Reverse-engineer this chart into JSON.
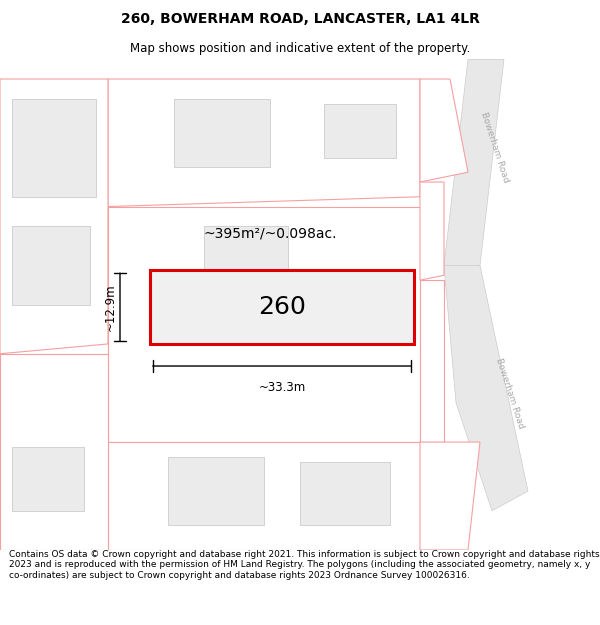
{
  "title": "260, BOWERHAM ROAD, LANCASTER, LA1 4LR",
  "subtitle": "Map shows position and indicative extent of the property.",
  "footer": "Contains OS data © Crown copyright and database right 2021. This information is subject to Crown copyright and database rights 2023 and is reproduced with the permission of HM Land Registry. The polygons (including the associated geometry, namely x, y co-ordinates) are subject to Crown copyright and database rights 2023 Ordnance Survey 100026316.",
  "background_color": "#ffffff",
  "road_label_top": "Bowerham Road",
  "road_label_bottom": "Bowerham Road",
  "property_number": "260",
  "area_text": "~395m²/~0.098ac.",
  "width_text": "~33.3m",
  "height_text": "~12.9m",
  "title_fontsize": 10,
  "subtitle_fontsize": 8.5,
  "footer_fontsize": 6.5,
  "road_fill": "#e8e8e8",
  "road_edge": "#cccccc",
  "neighbor_fill": "#ebebeb",
  "neighbor_outline": "#f5a0a0",
  "inner_fill": "#e0e0e0",
  "inner_outline": "#cccccc",
  "property_fill": "#f0f0f0",
  "property_outline": "#dd0000"
}
